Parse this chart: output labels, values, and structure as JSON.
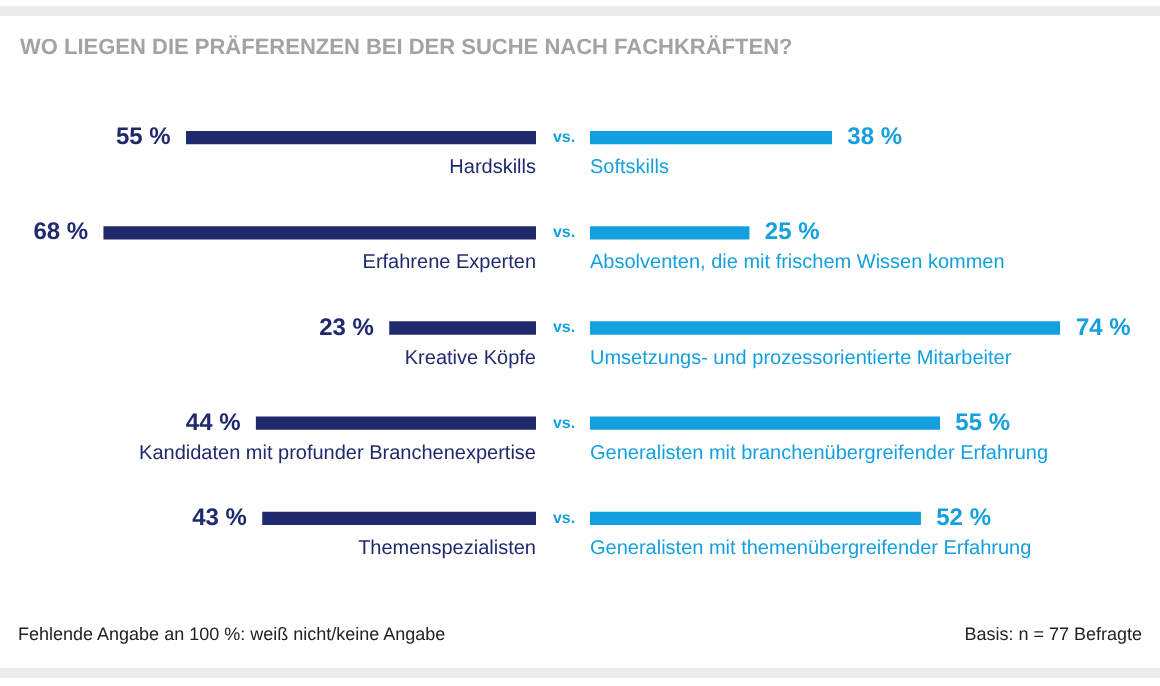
{
  "chart_data": [
    {
      "type": "bar",
      "orientation": "horizontal",
      "title": "WO LIEGEN DIE PRÄFERENZEN BEI DER SUCHE NACH FACHKRÄFTEN?",
      "categories": [
        "Hardskills",
        "Erfahrene Experten",
        "Kreative Köpfe",
        "Kandidaten mit profunder Branchenexpertise",
        "Themenspezialisten"
      ],
      "values": [
        55,
        68,
        23,
        44,
        43
      ],
      "value_labels": [
        "55 %",
        "68 %",
        "23 %",
        "44 %",
        "43 %"
      ],
      "color": "#1f2a6e",
      "tick_labels": false,
      "annotations": [
        "Fehlende Angabe an 100 %: weiß nicht/keine Angabe",
        "Basis: n = 77 Befragte"
      ]
    },
    {
      "type": "bar",
      "orientation": "horizontal",
      "categories": [
        "Softskills",
        "Absolventen, die mit frischem Wissen kommen",
        "Umsetzungs- und prozessorientierte Mitarbeiter",
        "Generalisten mit branchenübergreifender Erfahrung",
        "Generalisten mit themenübergreifender Erfahrung"
      ],
      "values": [
        38,
        25,
        74,
        55,
        52
      ],
      "value_labels": [
        "38 %",
        "25 %",
        "74 %",
        "55 %",
        "52 %"
      ],
      "color": "#149fdf",
      "tick_labels": false,
      "annotations": [
        "vs.",
        "vs.",
        "vs.",
        "vs.",
        "vs."
      ]
    }
  ]
}
